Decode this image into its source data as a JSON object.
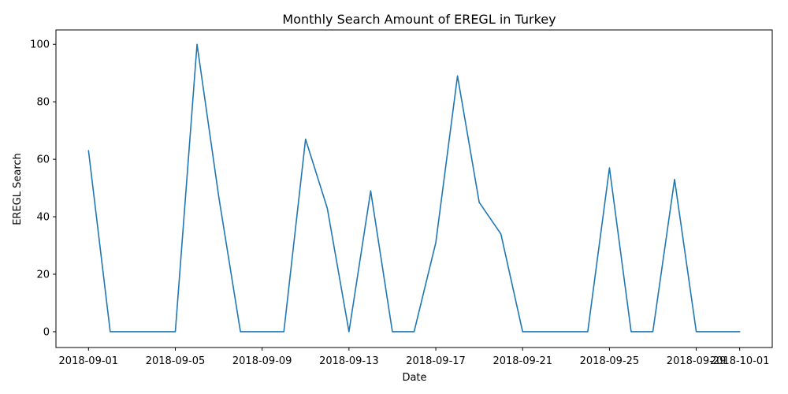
{
  "chart_data": {
    "type": "line",
    "title": "Monthly Search Amount of EREGL in Turkey",
    "xlabel": "Date",
    "ylabel": "EREGL Search",
    "x": [
      "2018-09-01",
      "2018-09-02",
      "2018-09-03",
      "2018-09-04",
      "2018-09-05",
      "2018-09-06",
      "2018-09-07",
      "2018-09-08",
      "2018-09-09",
      "2018-09-10",
      "2018-09-11",
      "2018-09-12",
      "2018-09-13",
      "2018-09-14",
      "2018-09-15",
      "2018-09-16",
      "2018-09-17",
      "2018-09-18",
      "2018-09-19",
      "2018-09-20",
      "2018-09-21",
      "2018-09-22",
      "2018-09-23",
      "2018-09-24",
      "2018-09-25",
      "2018-09-26",
      "2018-09-27",
      "2018-09-28",
      "2018-09-29",
      "2018-09-30",
      "2018-10-01"
    ],
    "series": [
      {
        "color": "#1f77b4",
        "values": [
          63,
          0,
          0,
          0,
          0,
          100,
          47,
          0,
          0,
          0,
          67,
          43,
          0,
          49,
          0,
          0,
          31,
          89,
          45,
          34,
          0,
          0,
          0,
          0,
          57,
          0,
          0,
          53,
          0,
          0,
          0
        ]
      }
    ],
    "xticks": [
      "2018-09-01",
      "2018-09-05",
      "2018-09-09",
      "2018-09-13",
      "2018-09-17",
      "2018-09-21",
      "2018-09-25",
      "2018-09-29",
      "2018-10-01"
    ],
    "yticks": [
      0,
      20,
      40,
      60,
      80,
      100
    ],
    "ylim": [
      -5.5,
      105
    ],
    "grid": false,
    "legend": false
  }
}
